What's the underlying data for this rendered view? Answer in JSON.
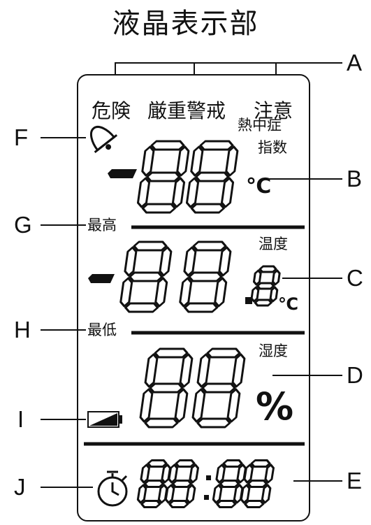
{
  "title": "液晶表示部",
  "warning_levels": [
    "危険",
    "厳重警戒",
    "注意"
  ],
  "heat_index_label": [
    "熱中症",
    "指数"
  ],
  "temperature_label": "温度",
  "humidity_label": "湿度",
  "max_label": "最高",
  "min_label": "最低",
  "units": {
    "celsius": "℃",
    "percent": "%"
  },
  "callouts": [
    "A",
    "B",
    "C",
    "D",
    "E",
    "F",
    "G",
    "H",
    "I",
    "J"
  ],
  "icons": [
    "bell-icon",
    "battery-icon",
    "stopwatch-icon"
  ],
  "colors": {
    "ink": "#111111",
    "background": "#ffffff"
  }
}
